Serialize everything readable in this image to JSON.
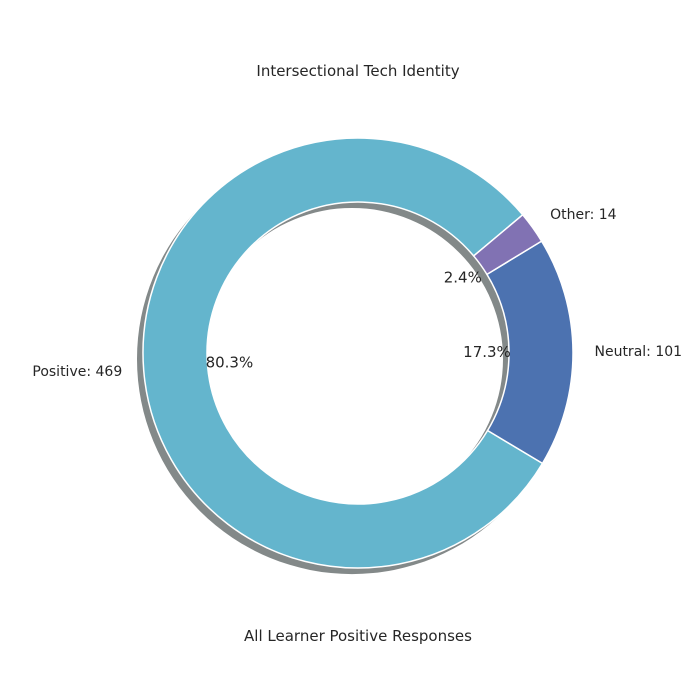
{
  "chart_data": {
    "type": "pie",
    "variant": "donut",
    "title": "Intersectional Tech Identity",
    "xlabel": "All Learner Positive Responses",
    "categories": [
      "Positive",
      "Neutral",
      "Other"
    ],
    "values": [
      469,
      101,
      14
    ],
    "slice_labels": [
      "Positive: 469",
      "Neutral: 101",
      "Other: 14"
    ],
    "percent_labels": [
      "80.3%",
      "17.3%",
      "2.4%"
    ],
    "colors": [
      "#64b5cd",
      "#4c72b0",
      "#8172b3"
    ],
    "shadow": true,
    "legend": "none"
  }
}
